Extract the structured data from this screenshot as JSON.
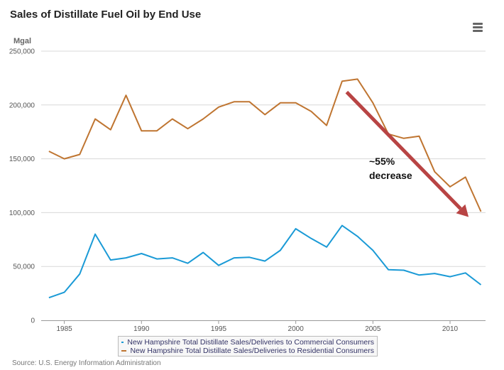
{
  "title": "Sales of Distillate Fuel Oil by End Use",
  "source": "Source: U.S. Energy Information Administration",
  "colors": {
    "commercial": "#1a9ad6",
    "residential": "#bf7531",
    "arrow": "#b84444",
    "grid": "#d8d8d8"
  },
  "chart_data": {
    "type": "line",
    "title": "Sales of Distillate Fuel Oil by End Use",
    "ylabel": "Mgal",
    "xlabel": "",
    "ylim": [
      0,
      250000
    ],
    "xlim": [
      1983.5,
      2012.3
    ],
    "yticks": [
      0,
      50000,
      100000,
      150000,
      200000,
      250000
    ],
    "ytick_labels": [
      "0",
      "50,000",
      "100,000",
      "150,000",
      "200,000",
      "250,000"
    ],
    "xticks": [
      1985,
      1990,
      1995,
      2000,
      2005,
      2010
    ],
    "xtick_labels": [
      "1985",
      "1990",
      "1995",
      "2000",
      "2005",
      "2010"
    ],
    "x": [
      1984,
      1985,
      1986,
      1987,
      1988,
      1989,
      1990,
      1991,
      1992,
      1993,
      1994,
      1995,
      1996,
      1997,
      1998,
      1999,
      2000,
      2001,
      2002,
      2003,
      2004,
      2005,
      2006,
      2007,
      2008,
      2009,
      2010,
      2011,
      2012
    ],
    "series": [
      {
        "name": "New Hampshire Total Distillate Sales/Deliveries to Commercial Consumers",
        "color": "#1a9ad6",
        "values": [
          21000,
          26000,
          43000,
          80000,
          56000,
          58000,
          62000,
          57000,
          58000,
          53000,
          63000,
          51000,
          58000,
          58500,
          55000,
          65000,
          85000,
          76000,
          68000,
          88000,
          78000,
          65000,
          47000,
          46500,
          42000,
          43500,
          40500,
          44000,
          33000
        ]
      },
      {
        "name": "New Hampshire Total Distillate Sales/Deliveries to Residential Consumers",
        "color": "#bf7531",
        "values": [
          157000,
          150000,
          154000,
          187000,
          177000,
          209000,
          176000,
          176000,
          187000,
          178000,
          187000,
          198000,
          203000,
          203000,
          191000,
          202000,
          202000,
          194000,
          181000,
          222000,
          224000,
          202000,
          173000,
          169000,
          171000,
          138000,
          124000,
          133000,
          101000
        ]
      }
    ],
    "annotations": [
      {
        "text_lines": [
          "~55%",
          "decrease"
        ],
        "arrow_from": [
          2003.3,
          212000
        ],
        "arrow_to": [
          2011.2,
          96000
        ]
      }
    ]
  }
}
